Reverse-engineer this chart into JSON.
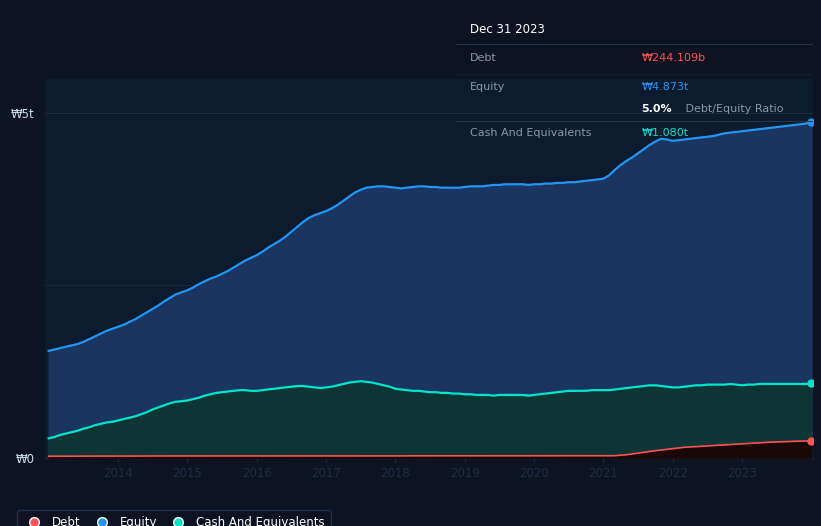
{
  "background_color": "#0d1320",
  "plot_bg_color": "#0d1b2e",
  "years": [
    2013.0,
    2013.083,
    2013.167,
    2013.25,
    2013.333,
    2013.417,
    2013.5,
    2013.583,
    2013.667,
    2013.75,
    2013.833,
    2013.917,
    2014.0,
    2014.083,
    2014.167,
    2014.25,
    2014.333,
    2014.417,
    2014.5,
    2014.583,
    2014.667,
    2014.75,
    2014.833,
    2014.917,
    2015.0,
    2015.083,
    2015.167,
    2015.25,
    2015.333,
    2015.417,
    2015.5,
    2015.583,
    2015.667,
    2015.75,
    2015.833,
    2015.917,
    2016.0,
    2016.083,
    2016.167,
    2016.25,
    2016.333,
    2016.417,
    2016.5,
    2016.583,
    2016.667,
    2016.75,
    2016.833,
    2016.917,
    2017.0,
    2017.083,
    2017.167,
    2017.25,
    2017.333,
    2017.417,
    2017.5,
    2017.583,
    2017.667,
    2017.75,
    2017.833,
    2017.917,
    2018.0,
    2018.083,
    2018.167,
    2018.25,
    2018.333,
    2018.417,
    2018.5,
    2018.583,
    2018.667,
    2018.75,
    2018.833,
    2018.917,
    2019.0,
    2019.083,
    2019.167,
    2019.25,
    2019.333,
    2019.417,
    2019.5,
    2019.583,
    2019.667,
    2019.75,
    2019.833,
    2019.917,
    2020.0,
    2020.083,
    2020.167,
    2020.25,
    2020.333,
    2020.417,
    2020.5,
    2020.583,
    2020.667,
    2020.75,
    2020.833,
    2020.917,
    2021.0,
    2021.083,
    2021.167,
    2021.25,
    2021.333,
    2021.417,
    2021.5,
    2021.583,
    2021.667,
    2021.75,
    2021.833,
    2021.917,
    2022.0,
    2022.083,
    2022.167,
    2022.25,
    2022.333,
    2022.417,
    2022.5,
    2022.583,
    2022.667,
    2022.75,
    2022.833,
    2022.917,
    2023.0,
    2023.083,
    2023.167,
    2023.25,
    2023.333,
    2023.417,
    2023.5,
    2023.583,
    2023.667,
    2023.75,
    2023.833,
    2023.917,
    2024.0
  ],
  "equity": [
    1.55,
    1.57,
    1.59,
    1.61,
    1.63,
    1.65,
    1.68,
    1.72,
    1.76,
    1.8,
    1.84,
    1.87,
    1.9,
    1.93,
    1.97,
    2.01,
    2.06,
    2.11,
    2.16,
    2.21,
    2.27,
    2.32,
    2.37,
    2.4,
    2.43,
    2.47,
    2.52,
    2.56,
    2.6,
    2.63,
    2.67,
    2.71,
    2.76,
    2.81,
    2.86,
    2.9,
    2.94,
    2.99,
    3.05,
    3.1,
    3.15,
    3.21,
    3.28,
    3.35,
    3.42,
    3.48,
    3.52,
    3.55,
    3.58,
    3.62,
    3.67,
    3.73,
    3.79,
    3.85,
    3.89,
    3.92,
    3.93,
    3.94,
    3.94,
    3.93,
    3.92,
    3.91,
    3.92,
    3.93,
    3.94,
    3.94,
    3.93,
    3.93,
    3.92,
    3.92,
    3.92,
    3.92,
    3.93,
    3.94,
    3.94,
    3.94,
    3.95,
    3.96,
    3.96,
    3.97,
    3.97,
    3.97,
    3.97,
    3.96,
    3.97,
    3.97,
    3.98,
    3.98,
    3.99,
    3.99,
    4.0,
    4.0,
    4.01,
    4.02,
    4.03,
    4.04,
    4.05,
    4.1,
    4.18,
    4.25,
    4.31,
    4.36,
    4.42,
    4.48,
    4.54,
    4.59,
    4.63,
    4.62,
    4.6,
    4.61,
    4.62,
    4.63,
    4.64,
    4.65,
    4.66,
    4.67,
    4.69,
    4.71,
    4.72,
    4.73,
    4.74,
    4.75,
    4.76,
    4.77,
    4.78,
    4.79,
    4.8,
    4.81,
    4.82,
    4.83,
    4.84,
    4.85,
    4.873
  ],
  "cash": [
    0.28,
    0.3,
    0.33,
    0.35,
    0.37,
    0.39,
    0.42,
    0.44,
    0.47,
    0.49,
    0.51,
    0.52,
    0.54,
    0.56,
    0.58,
    0.6,
    0.63,
    0.66,
    0.7,
    0.73,
    0.76,
    0.79,
    0.81,
    0.82,
    0.83,
    0.85,
    0.87,
    0.9,
    0.92,
    0.94,
    0.95,
    0.96,
    0.97,
    0.98,
    0.98,
    0.97,
    0.97,
    0.98,
    0.99,
    1.0,
    1.01,
    1.02,
    1.03,
    1.04,
    1.04,
    1.03,
    1.02,
    1.01,
    1.02,
    1.03,
    1.05,
    1.07,
    1.09,
    1.1,
    1.11,
    1.1,
    1.09,
    1.07,
    1.05,
    1.03,
    1.0,
    0.99,
    0.98,
    0.97,
    0.97,
    0.96,
    0.95,
    0.95,
    0.94,
    0.94,
    0.93,
    0.93,
    0.92,
    0.92,
    0.91,
    0.91,
    0.91,
    0.9,
    0.91,
    0.91,
    0.91,
    0.91,
    0.91,
    0.9,
    0.91,
    0.92,
    0.93,
    0.94,
    0.95,
    0.96,
    0.97,
    0.97,
    0.97,
    0.97,
    0.98,
    0.98,
    0.98,
    0.98,
    0.99,
    1.0,
    1.01,
    1.02,
    1.03,
    1.04,
    1.05,
    1.05,
    1.04,
    1.03,
    1.02,
    1.02,
    1.03,
    1.04,
    1.05,
    1.05,
    1.06,
    1.06,
    1.06,
    1.06,
    1.07,
    1.06,
    1.05,
    1.06,
    1.06,
    1.07,
    1.07,
    1.07,
    1.07,
    1.07,
    1.07,
    1.07,
    1.07,
    1.07,
    1.08
  ],
  "debt": [
    0.02,
    0.02,
    0.021,
    0.021,
    0.021,
    0.021,
    0.022,
    0.022,
    0.022,
    0.022,
    0.023,
    0.023,
    0.023,
    0.023,
    0.023,
    0.023,
    0.023,
    0.024,
    0.024,
    0.024,
    0.024,
    0.024,
    0.024,
    0.024,
    0.024,
    0.024,
    0.024,
    0.024,
    0.024,
    0.024,
    0.024,
    0.024,
    0.024,
    0.024,
    0.024,
    0.024,
    0.024,
    0.024,
    0.024,
    0.024,
    0.024,
    0.024,
    0.024,
    0.024,
    0.025,
    0.025,
    0.025,
    0.025,
    0.025,
    0.025,
    0.025,
    0.025,
    0.025,
    0.025,
    0.025,
    0.025,
    0.025,
    0.025,
    0.025,
    0.025,
    0.025,
    0.025,
    0.026,
    0.026,
    0.026,
    0.026,
    0.027,
    0.027,
    0.027,
    0.027,
    0.027,
    0.027,
    0.027,
    0.027,
    0.027,
    0.027,
    0.027,
    0.027,
    0.027,
    0.027,
    0.027,
    0.027,
    0.027,
    0.027,
    0.027,
    0.027,
    0.027,
    0.027,
    0.027,
    0.027,
    0.027,
    0.027,
    0.027,
    0.027,
    0.027,
    0.027,
    0.027,
    0.027,
    0.028,
    0.035,
    0.042,
    0.053,
    0.065,
    0.078,
    0.09,
    0.1,
    0.11,
    0.12,
    0.13,
    0.14,
    0.15,
    0.155,
    0.16,
    0.165,
    0.17,
    0.175,
    0.18,
    0.185,
    0.19,
    0.195,
    0.2,
    0.205,
    0.21,
    0.215,
    0.22,
    0.225,
    0.228,
    0.231,
    0.234,
    0.237,
    0.24,
    0.242,
    0.244
  ],
  "equity_color": "#2196f3",
  "cash_color": "#00e5cc",
  "debt_color": "#ff5252",
  "equity_fill": "#1a3560",
  "cash_fill": "#0d3535",
  "ylabel_top": "₩5t",
  "ylabel_zero": "₩0",
  "x_ticks": [
    2014,
    2015,
    2016,
    2017,
    2018,
    2019,
    2020,
    2021,
    2022,
    2023
  ],
  "ylim_max": 5.5,
  "grid_color": "#1e2d45",
  "tooltip_bg": "#0a0e18",
  "tooltip_border": "#2a3550",
  "tooltip_title": "Dec 31 2023",
  "tooltip_debt_label": "Debt",
  "tooltip_debt_value": "₩244.109b",
  "tooltip_equity_label": "Equity",
  "tooltip_equity_value": "₩4.873t",
  "tooltip_ratio_bold": "5.0%",
  "tooltip_ratio_text": " Debt/Equity Ratio",
  "tooltip_cash_label": "Cash And Equivalents",
  "tooltip_cash_value": "₩1.080t",
  "legend_items": [
    "Debt",
    "Equity",
    "Cash And Equivalents"
  ]
}
